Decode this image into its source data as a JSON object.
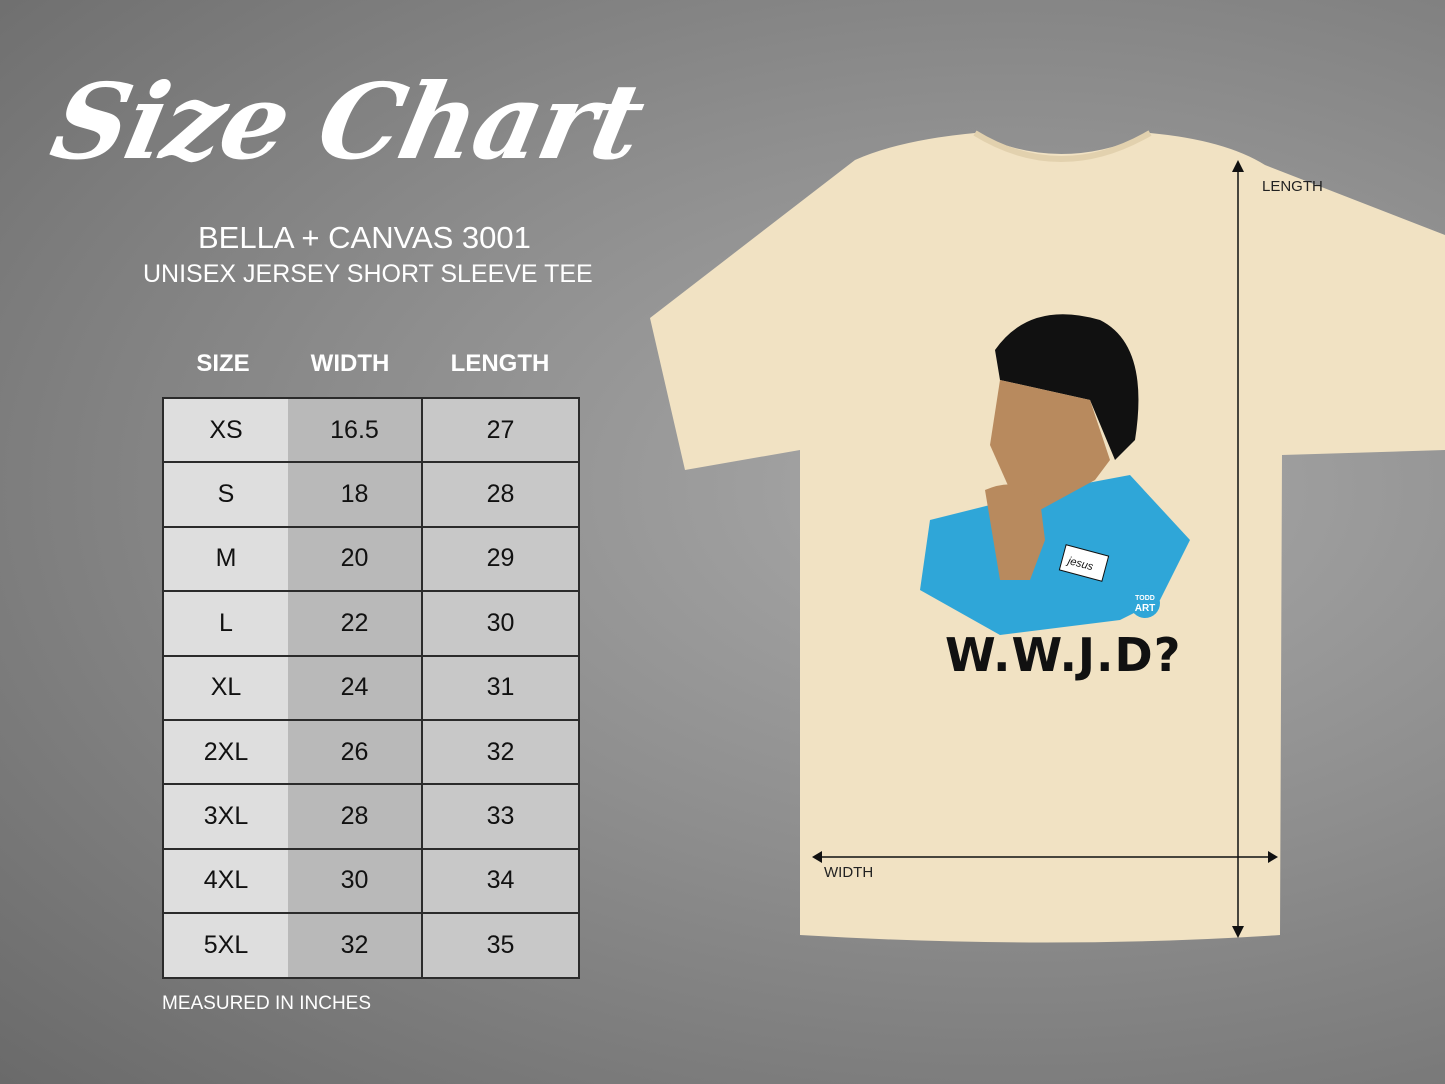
{
  "header": {
    "title": "Size Chart",
    "brand": "BELLA + CANVAS 3001",
    "subtitle": "UNISEX JERSEY SHORT SLEEVE TEE"
  },
  "table": {
    "columns": [
      "SIZE",
      "WIDTH",
      "LENGTH"
    ],
    "rows": [
      [
        "XS",
        "16.5",
        "27"
      ],
      [
        "S",
        "18",
        "28"
      ],
      [
        "M",
        "20",
        "29"
      ],
      [
        "L",
        "22",
        "30"
      ],
      [
        "XL",
        "24",
        "31"
      ],
      [
        "2XL",
        "26",
        "32"
      ],
      [
        "3XL",
        "28",
        "33"
      ],
      [
        "4XL",
        "30",
        "34"
      ],
      [
        "5XL",
        "32",
        "35"
      ]
    ],
    "note": "MEASURED IN INCHES"
  },
  "shirt": {
    "color": "#f1e2c3",
    "print_text": "W.W.J.D?",
    "name_tag": "jesus",
    "logo": "TODD ART",
    "length_label": "LENGTH",
    "width_label": "WIDTH",
    "shirt_print_accent": "#2fa6d8"
  }
}
